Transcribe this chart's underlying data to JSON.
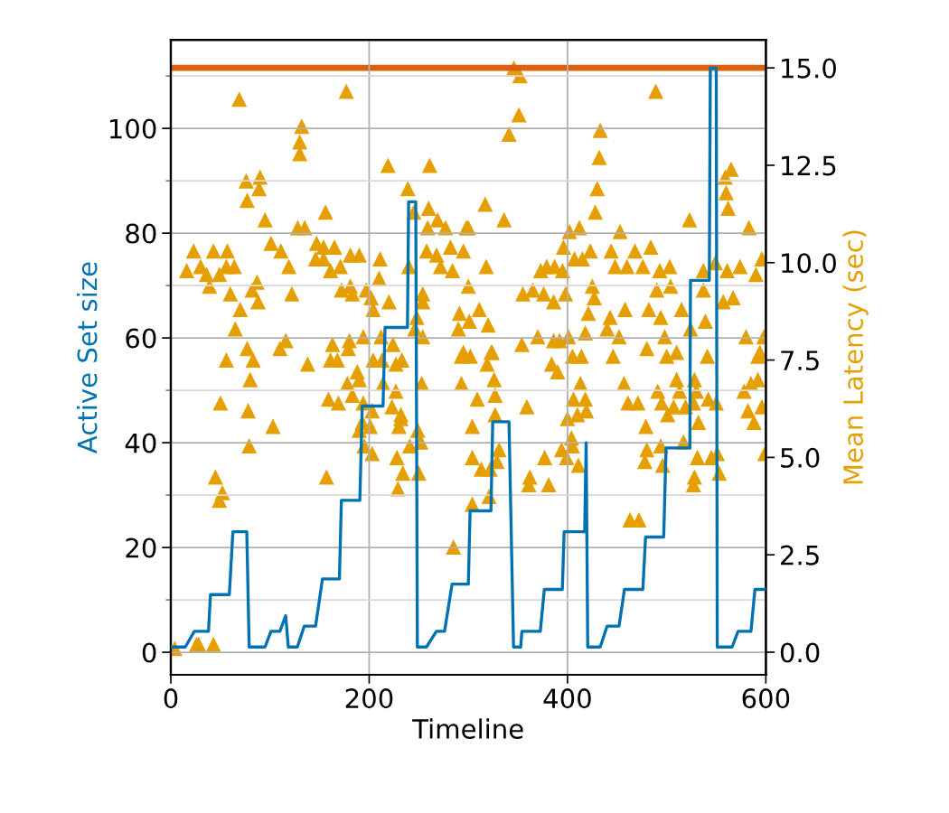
{
  "chart_data": {
    "type": "line",
    "xlabel": "Timeline",
    "ylabel": "Active Set size",
    "y2label": "Mean Latency (sec)",
    "xlim": [
      0,
      600
    ],
    "xticks": [
      0,
      200,
      400,
      600
    ],
    "ylim": [
      -4.3,
      116.9
    ],
    "yticks": [
      0,
      20,
      40,
      60,
      80,
      100
    ],
    "y2lim": [
      -0.58,
      15.72
    ],
    "y2ticks": [
      {
        "value": 0,
        "label": "0.0"
      },
      {
        "value": 2.5,
        "label": "2.5"
      },
      {
        "value": 5,
        "label": "5.0"
      },
      {
        "value": 7.5,
        "label": "7.5"
      },
      {
        "value": 10,
        "label": "10.0"
      },
      {
        "value": 12.5,
        "label": "12.5"
      },
      {
        "value": 15,
        "label": "15.0"
      }
    ],
    "grid": true,
    "legend": false,
    "ref_lines": [
      {
        "axis": "y2",
        "value": 15,
        "label": null,
        "color": "#dd600e",
        "line_style": "solid"
      }
    ],
    "series": [
      {
        "color": "#0072b2",
        "line_style": "solid",
        "marker": "none",
        "x": [
          0,
          14.6,
          23.7,
          38,
          40,
          59,
          62.6,
          76.6,
          79,
          95,
          101,
          110,
          115.8,
          118.5,
          127.6,
          134.6,
          146,
          152.9,
          170,
          172,
          190.6,
          193,
          214,
          216,
          238.6,
          239.8,
          247,
          248.6,
          257.8,
          267.8,
          276,
          283.6,
          300,
          301.8,
          322.8,
          324.6,
          341,
          345.6,
          352.8,
          354,
          372.6,
          376.6,
          394.8,
          396.6,
          417.3,
          418.8,
          420.4,
          433,
          440,
          452,
          457.4,
          476,
          478.7,
          497,
          499.4,
          523.4,
          524,
          543,
          544,
          550,
          551,
          566,
          572,
          585,
          589,
          600
        ],
        "values": [
          1,
          1,
          4,
          4,
          11,
          11,
          23,
          23,
          1,
          1,
          4,
          4,
          7,
          1,
          1,
          5,
          5,
          14,
          14,
          29,
          29,
          47,
          47,
          62,
          62,
          86,
          86,
          1,
          1,
          4,
          4,
          13,
          13,
          27,
          27,
          44,
          44,
          1,
          1,
          4,
          4,
          12,
          12,
          23,
          23,
          40,
          1,
          1,
          5,
          5,
          12,
          12,
          22,
          22,
          39,
          39,
          71,
          71,
          111.5,
          111.5,
          1,
          1,
          4,
          4,
          12,
          12
        ]
      },
      {
        "type": "scatter",
        "axis": "y2",
        "color": "#e69f00",
        "marker": "triangle",
        "x": [
          69,
          177,
          132,
          130,
          130,
          219,
          261,
          76,
          90,
          89,
          77,
          239,
          245,
          260,
          156,
          95,
          128,
          135,
          259,
          269,
          277,
          298,
          23,
          43,
          57,
          101,
          111,
          147,
          154,
          165,
          181,
          190,
          146,
          154,
          211,
          258,
          268,
          282,
          295,
          16,
          30,
          36,
          49,
          56,
          64,
          119,
          161,
          171,
          210,
          240,
          272,
          284,
          39,
          87,
          60,
          82,
          122,
          172,
          181,
          183,
          197,
          202,
          220,
          254,
          254,
          300,
          70,
          88,
          204,
          248,
          291,
          65,
          246,
          254,
          290,
          301,
          116,
          110,
          77,
          163,
          180,
          179,
          194,
          212,
          224,
          295,
          56,
          83,
          138,
          161,
          168,
          204,
          213,
          227,
          233,
          293,
          80,
          188,
          190,
          178,
          214,
          253,
          293,
          50,
          159,
          169,
          183,
          194,
          203,
          227,
          223,
          232,
          232,
          78,
          103,
          190,
          193,
          201,
          230,
          249,
          252,
          241,
          79,
          195,
          203,
          228,
          234,
          229,
          250,
          45,
          52,
          49,
          157,
          304,
          304,
          304,
          285,
          4,
          26,
          28,
          43,
          346,
          352,
          351,
          341,
          489,
          433,
          432,
          430,
          428,
          317,
          336,
          523,
          559,
          565,
          560,
          562,
          300,
          402,
          412,
          453,
          583,
          396,
          423,
          444,
          468,
          484,
          407,
          415,
          596,
          318,
          373,
          379,
          387,
          395,
          448,
          460,
          476,
          493,
          503,
          537,
          549,
          561,
          574,
          590,
          355,
          365,
          376,
          386,
          398,
          425,
          427,
          490,
          504,
          537,
          557,
          567,
          311,
          320,
          421,
          443,
          458,
          482,
          494,
          515,
          524,
          539,
          440,
          354,
          370,
          386,
          392,
          401,
          418,
          452,
          498,
          580,
          598,
          324,
          480,
          510,
          594,
          302,
          323,
          319,
          326,
          327,
          309,
          327,
          331,
          329,
          313,
          322,
          321,
          384,
          390,
          359,
          405,
          414,
          446,
          413,
          406,
          418,
          419,
          400,
          410,
          404,
          405,
          394,
          399,
          411,
          377,
          362,
          361,
          381,
          457,
          461,
          471,
          479,
          491,
          495,
          501,
          507,
          510,
          513,
          519,
          528,
          530,
          527,
          532,
          542,
          550,
          480,
          478,
          494,
          496,
          517,
          531,
          528,
          527,
          551,
          545,
          553,
          463,
          472,
          541,
          500,
          578,
          585,
          592,
          596,
          582,
          588,
          599,
          592
        ],
        "values": [
          14.2,
          14.4,
          13.5,
          13.1,
          12.8,
          12.5,
          12.5,
          12.1,
          12.2,
          11.9,
          11.6,
          11.9,
          11.3,
          11.4,
          11.3,
          11.1,
          10.9,
          10.9,
          10.9,
          11.1,
          10.9,
          10.9,
          10.3,
          10.3,
          10.3,
          10.5,
          10.3,
          10.5,
          10.4,
          10.4,
          10.2,
          10.2,
          10.1,
          10.1,
          10.1,
          10.3,
          10.2,
          10.4,
          10.3,
          9.8,
          9.9,
          9.7,
          9.7,
          9.9,
          9.9,
          9.9,
          9.8,
          9.9,
          9.6,
          9.9,
          9.9,
          9.8,
          9.4,
          9.5,
          9.2,
          9.3,
          9.2,
          9.3,
          9.4,
          9.2,
          9.3,
          9.1,
          9.0,
          9.2,
          9.0,
          9.4,
          8.8,
          9.0,
          8.8,
          8.6,
          8.7,
          8.3,
          8.3,
          8.1,
          8.3,
          8.5,
          8.0,
          7.8,
          7.8,
          7.9,
          8.0,
          7.8,
          8.1,
          8.1,
          7.9,
          7.7,
          7.5,
          7.5,
          7.4,
          7.5,
          7.5,
          7.5,
          7.5,
          7.4,
          7.5,
          7.6,
          7.0,
          7.2,
          7.0,
          6.9,
          6.9,
          6.9,
          6.9,
          6.4,
          6.5,
          6.4,
          6.6,
          6.4,
          6.2,
          6.7,
          6.3,
          6.1,
          6.0,
          6.2,
          5.8,
          5.7,
          5.9,
          5.8,
          5.8,
          5.7,
          5.4,
          5.3,
          5.3,
          5.3,
          5.1,
          5.0,
          4.6,
          4.2,
          4.6,
          4.5,
          4.1,
          3.9,
          4.5,
          5.8,
          5.0,
          3.8,
          2.7,
          0.1,
          0.2,
          0.2,
          0.2,
          15.0,
          14.8,
          13.8,
          13.3,
          14.4,
          13.4,
          12.7,
          11.9,
          11.3,
          11.5,
          11.1,
          11.1,
          12.2,
          12.4,
          11.8,
          11.4,
          10.9,
          10.8,
          10.9,
          10.8,
          10.9,
          10.4,
          10.3,
          10.3,
          10.3,
          10.4,
          10.1,
          10.1,
          10.1,
          9.9,
          9.8,
          9.9,
          9.9,
          9.8,
          9.9,
          9.9,
          9.9,
          9.8,
          9.9,
          9.8,
          10.0,
          9.8,
          9.9,
          9.7,
          9.2,
          9.3,
          9.2,
          9.0,
          9.2,
          9.4,
          9.1,
          9.3,
          9.4,
          9.3,
          9.0,
          9.1,
          8.8,
          8.4,
          8.7,
          8.6,
          8.8,
          8.8,
          8.6,
          8.8,
          8.3,
          8.5,
          8.3,
          7.9,
          8.1,
          8.0,
          8.0,
          8.1,
          8.2,
          8.1,
          8.1,
          8.1,
          8.1,
          7.7,
          7.8,
          7.7,
          7.7,
          7.6,
          7.7,
          7.4,
          7.0,
          6.6,
          6.5,
          6.1,
          5.2,
          4.9,
          4.7,
          4.7,
          4.0,
          7.4,
          7.2,
          6.3,
          7.6,
          7.6,
          7.6,
          6.9,
          6.5,
          6.5,
          6.2,
          6.0,
          6.1,
          5.5,
          5.3,
          5.2,
          5.0,
          4.8,
          5.0,
          4.5,
          4.3,
          4.3,
          6.9,
          6.4,
          6.4,
          5.8,
          6.7,
          6.4,
          6.1,
          6.3,
          7.0,
          6.7,
          6.3,
          7.0,
          6.7,
          6.4,
          5.9,
          6.5,
          6.4,
          5.2,
          4.9,
          5.3,
          4.8,
          5.4,
          5.0,
          4.5,
          4.3,
          5.1,
          5.0,
          4.6,
          3.4,
          3.4,
          7.6,
          7.6,
          6.7,
          6.9,
          7.0,
          6.3,
          6.2,
          5.9,
          5.1,
          7.6
        ]
      }
    ]
  }
}
